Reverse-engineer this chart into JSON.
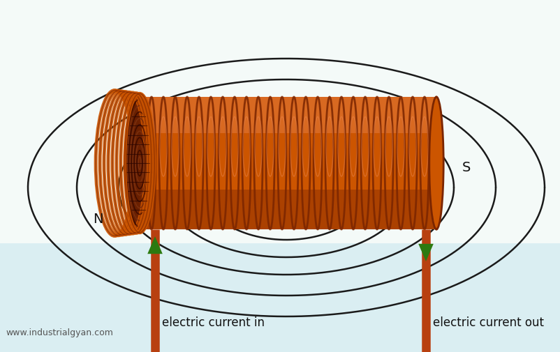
{
  "bg_color": "#f0f8f5",
  "bg_color_bottom": "#d8eef0",
  "coil_color_main": "#cc5500",
  "coil_color_dark": "#7a2500",
  "coil_color_light": "#e8824a",
  "coil_color_inner": "#3a0800",
  "wire_color": "#b84010",
  "field_line_color": "#1a1a1a",
  "arrow_color": "#2d7a10",
  "text_color": "#111111",
  "watermark_color": "#555555",
  "label_current_in": "electric current in",
  "label_current_out": "electric current out",
  "label_N": "N",
  "label_S": "S",
  "watermark": "www.industrialgyan.com",
  "figsize": [
    8.03,
    5.06
  ],
  "dpi": 100
}
